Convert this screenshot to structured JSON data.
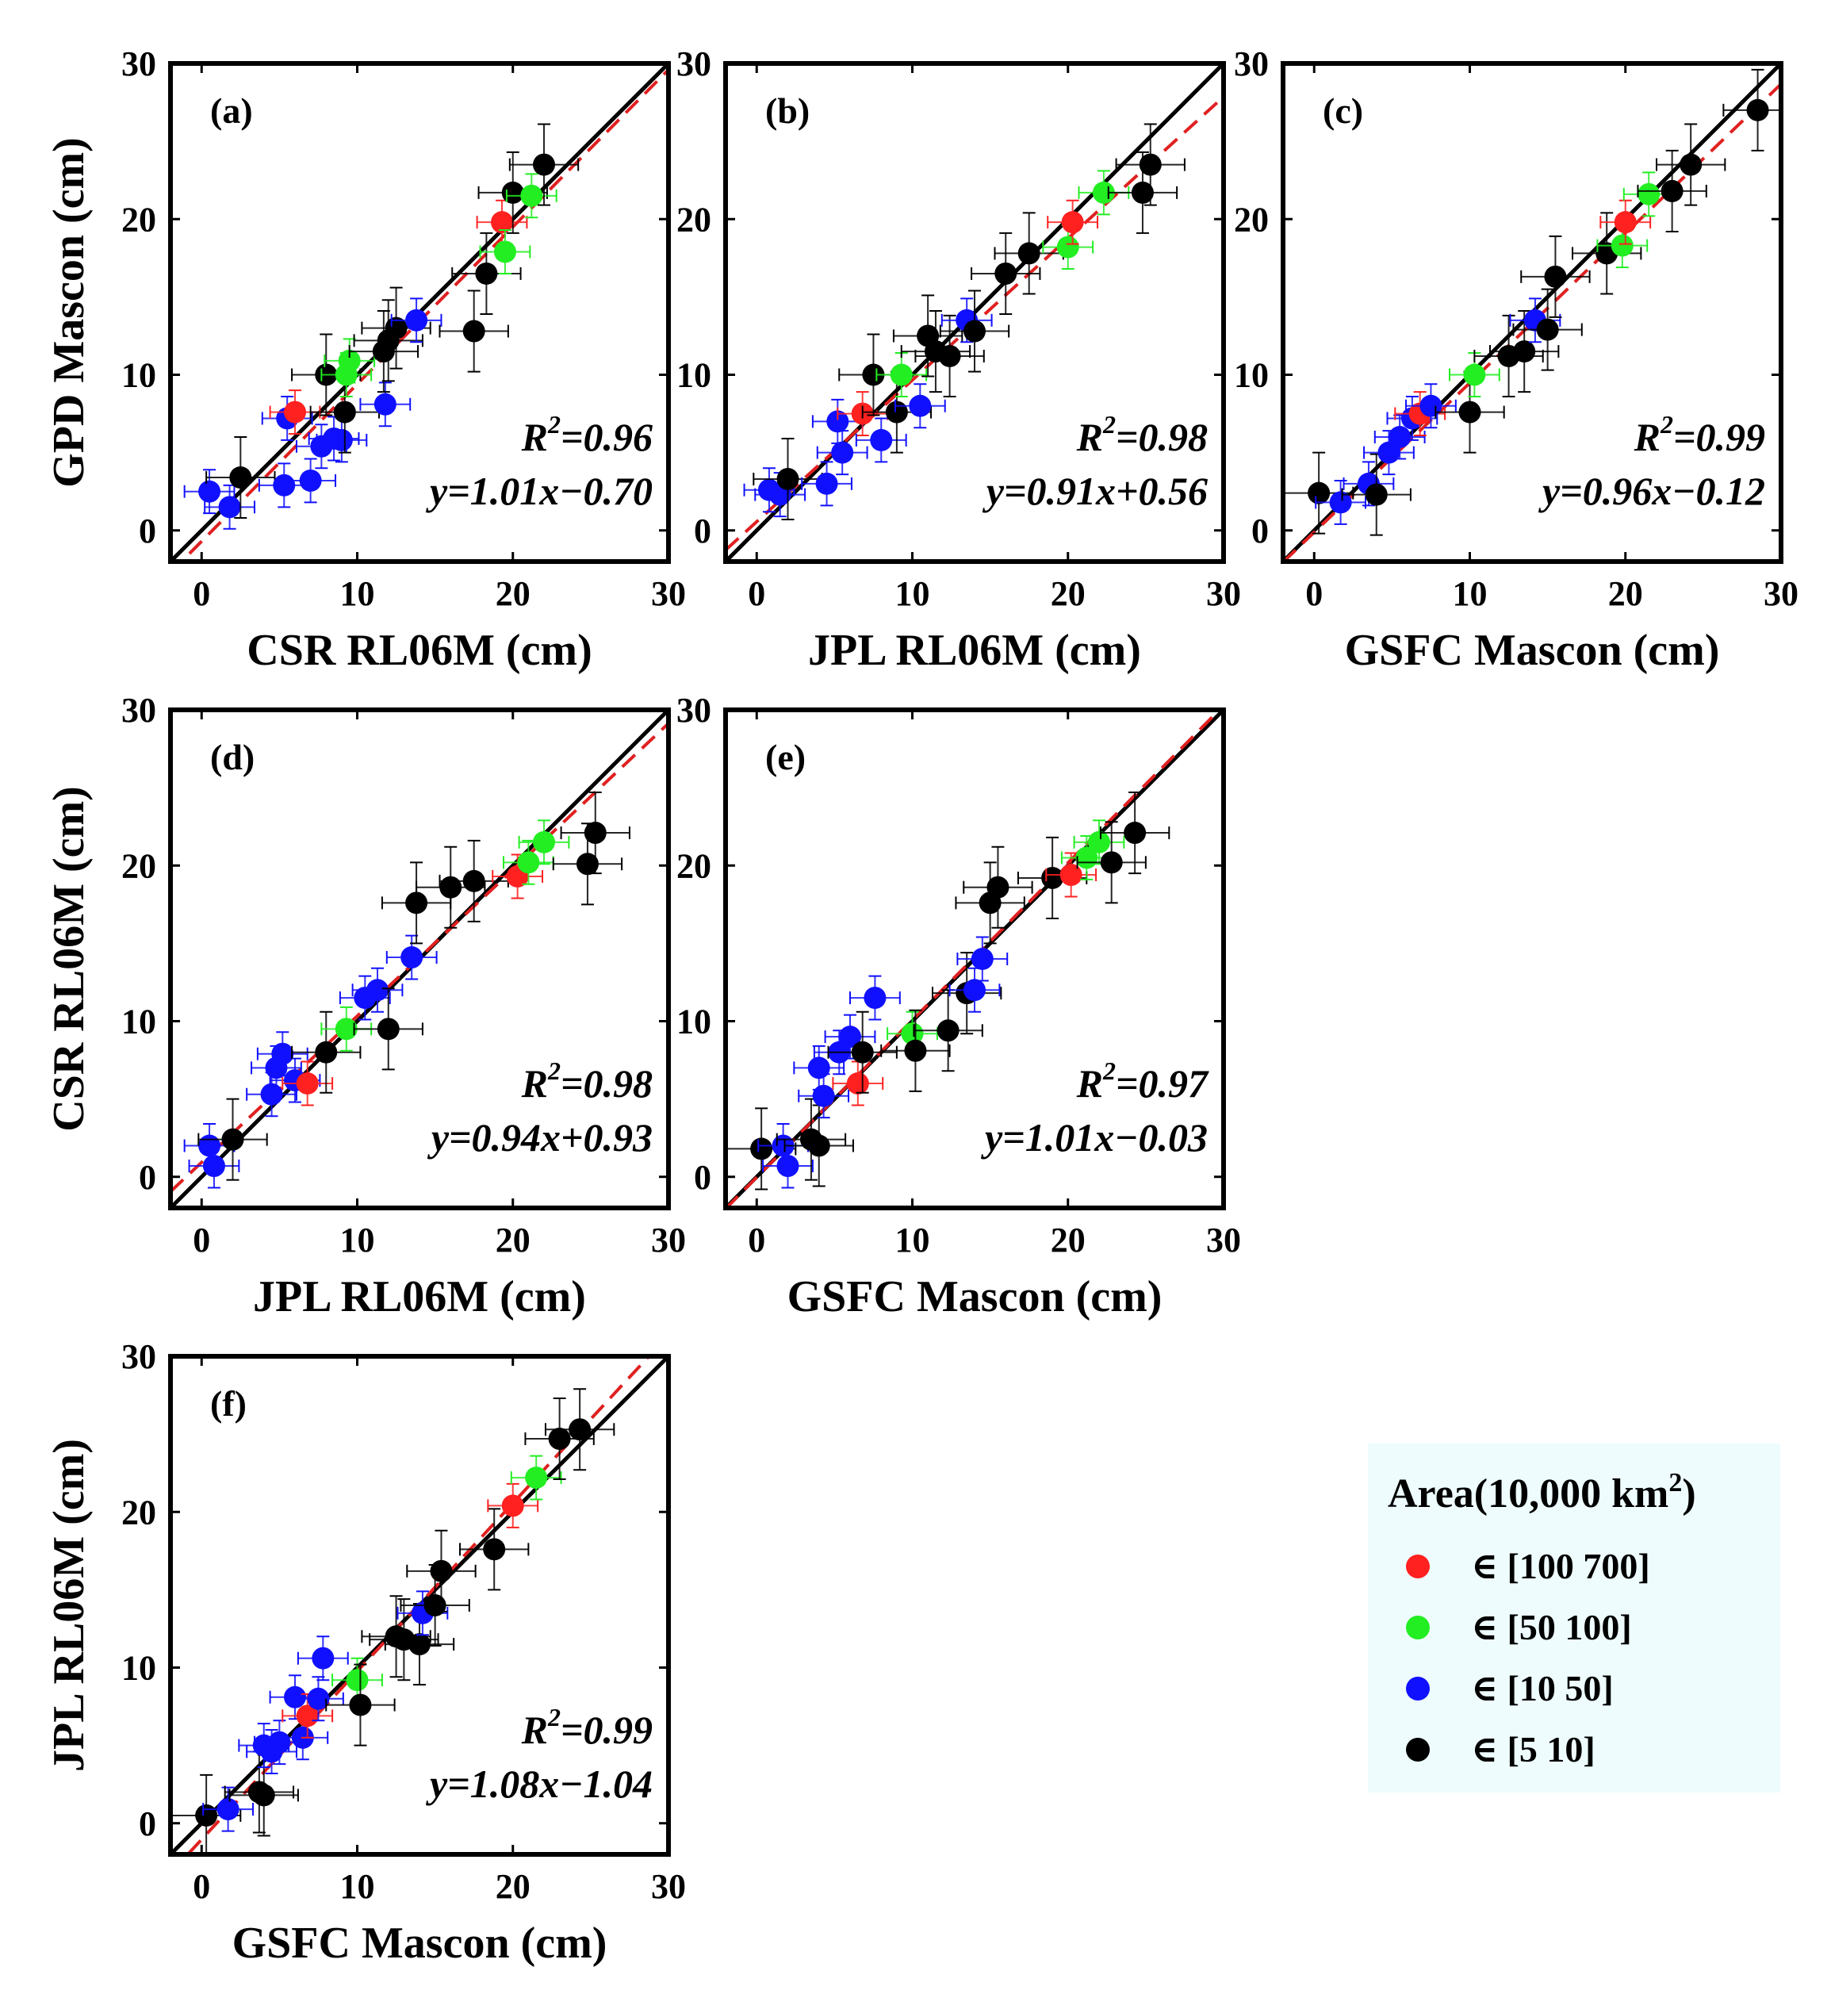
{
  "colors": {
    "red": "#ff2020",
    "green": "#22ee22",
    "blue": "#1010ff",
    "black": "#000000",
    "identity": "#000000",
    "fit": "#e02020",
    "legend_bg": "#eefcfd"
  },
  "legend": {
    "title_prefix": "Area(10,000 km",
    "title_sup": "2",
    "title_suffix": ")",
    "entries": [
      {
        "label": "∈ [100 700]",
        "color": "red"
      },
      {
        "label": "∈ [50 100]",
        "color": "green"
      },
      {
        "label": "∈ [10 50]",
        "color": "blue"
      },
      {
        "label": "∈ [5 10]",
        "color": "black"
      }
    ]
  },
  "chart_data": [
    {
      "type": "scatter",
      "panel": "(a)",
      "xlabel": "CSR RL06M (cm)",
      "ylabel": "GPD Mascon (cm)",
      "xlim": [
        -2,
        30
      ],
      "ylim": [
        -2,
        30
      ],
      "xticks": [
        "0",
        "10",
        "20",
        "30"
      ],
      "yticks": [
        "0",
        "10",
        "20",
        "30"
      ],
      "r2_label": "R",
      "r2_sup": "2",
      "r2_value": "=0.96",
      "fit_text": "y=1.01x−0.70",
      "fit": {
        "slope": 1.01,
        "intercept": -0.7
      },
      "points": [
        [
          0.5,
          2.5,
          "blue"
        ],
        [
          1.8,
          1.5,
          "blue"
        ],
        [
          2.5,
          3.4,
          "black"
        ],
        [
          5.3,
          2.9,
          "blue"
        ],
        [
          5.5,
          7.2,
          "blue"
        ],
        [
          6,
          7.6,
          "red"
        ],
        [
          7,
          3.2,
          "blue"
        ],
        [
          7.7,
          5.4,
          "blue"
        ],
        [
          8,
          10,
          "black"
        ],
        [
          8.5,
          5.9,
          "blue"
        ],
        [
          9,
          5.8,
          "blue"
        ],
        [
          9.2,
          7.6,
          "black"
        ],
        [
          9.5,
          10.9,
          "green"
        ],
        [
          9.3,
          10,
          "green"
        ],
        [
          11.8,
          8.1,
          "blue"
        ],
        [
          11.7,
          11.5,
          "black"
        ],
        [
          12,
          12.2,
          "black"
        ],
        [
          12.5,
          13,
          "black"
        ],
        [
          13.8,
          13.5,
          "blue"
        ],
        [
          17.5,
          12.8,
          "black"
        ],
        [
          18.3,
          16.5,
          "black"
        ],
        [
          19.3,
          19.8,
          "red"
        ],
        [
          19.5,
          17.9,
          "green"
        ],
        [
          20,
          21.7,
          "black"
        ],
        [
          21.2,
          21.5,
          "green"
        ],
        [
          22,
          23.5,
          "black"
        ]
      ]
    },
    {
      "type": "scatter",
      "panel": "(b)",
      "xlabel": "JPL RL06M (cm)",
      "ylabel": "",
      "xlim": [
        -2,
        30
      ],
      "ylim": [
        -2,
        30
      ],
      "xticks": [
        "0",
        "10",
        "20",
        "30"
      ],
      "yticks": [
        "0",
        "10",
        "20",
        "30"
      ],
      "r2_label": "R",
      "r2_sup": "2",
      "r2_value": "=0.98",
      "fit_text": "y=0.91x+0.56",
      "fit": {
        "slope": 0.91,
        "intercept": 0.56
      },
      "points": [
        [
          0.8,
          2.6,
          "blue"
        ],
        [
          1.5,
          2.3,
          "blue"
        ],
        [
          2,
          3.3,
          "black"
        ],
        [
          4.5,
          3,
          "blue"
        ],
        [
          5.2,
          7,
          "blue"
        ],
        [
          5.5,
          5,
          "blue"
        ],
        [
          6.8,
          7.5,
          "red"
        ],
        [
          7.5,
          10,
          "black"
        ],
        [
          8,
          5.8,
          "blue"
        ],
        [
          9,
          7.6,
          "black"
        ],
        [
          9.3,
          10,
          "green"
        ],
        [
          10.5,
          8,
          "blue"
        ],
        [
          11,
          12.5,
          "black"
        ],
        [
          11.5,
          11.5,
          "black"
        ],
        [
          12.4,
          11.2,
          "black"
        ],
        [
          13.5,
          13.5,
          "blue"
        ],
        [
          14,
          12.8,
          "black"
        ],
        [
          16,
          16.5,
          "black"
        ],
        [
          17.5,
          17.8,
          "black"
        ],
        [
          20,
          18.2,
          "green"
        ],
        [
          20.3,
          19.8,
          "red"
        ],
        [
          22.3,
          21.7,
          "green"
        ],
        [
          24.8,
          21.7,
          "black"
        ],
        [
          25.3,
          23.5,
          "black"
        ]
      ]
    },
    {
      "type": "scatter",
      "panel": "(c)",
      "xlabel": "GSFC Mascon (cm)",
      "ylabel": "",
      "xlim": [
        -2,
        30
      ],
      "ylim": [
        -2,
        30
      ],
      "xticks": [
        "0",
        "10",
        "20",
        "30"
      ],
      "yticks": [
        "0",
        "10",
        "20",
        "30"
      ],
      "r2_label": "R",
      "r2_sup": "2",
      "r2_value": "=0.99",
      "fit_text": "y=0.96x−0.12",
      "fit": {
        "slope": 0.96,
        "intercept": -0.12
      },
      "points": [
        [
          0.3,
          2.4,
          "black"
        ],
        [
          1.7,
          1.8,
          "blue"
        ],
        [
          3.5,
          3,
          "blue"
        ],
        [
          4,
          2.3,
          "black"
        ],
        [
          4.8,
          5,
          "blue"
        ],
        [
          5.5,
          6,
          "blue"
        ],
        [
          6.3,
          7.2,
          "blue"
        ],
        [
          6.8,
          7.5,
          "red"
        ],
        [
          7.5,
          8,
          "blue"
        ],
        [
          10,
          7.6,
          "black"
        ],
        [
          10.3,
          10,
          "green"
        ],
        [
          12.5,
          11.2,
          "black"
        ],
        [
          13.5,
          11.5,
          "black"
        ],
        [
          14.2,
          13.5,
          "blue"
        ],
        [
          15,
          12.9,
          "black"
        ],
        [
          15.5,
          16.3,
          "black"
        ],
        [
          18.8,
          17.8,
          "black"
        ],
        [
          19.8,
          18.3,
          "green"
        ],
        [
          20,
          19.8,
          "red"
        ],
        [
          21.5,
          21.6,
          "green"
        ],
        [
          23,
          21.8,
          "black"
        ],
        [
          24.2,
          23.5,
          "black"
        ],
        [
          28.5,
          27,
          "black"
        ]
      ]
    },
    {
      "type": "scatter",
      "panel": "(d)",
      "xlabel": "JPL RL06M (cm)",
      "ylabel": "CSR RL06M (cm)",
      "xlim": [
        -2,
        30
      ],
      "ylim": [
        -2,
        30
      ],
      "xticks": [
        "0",
        "10",
        "20",
        "30"
      ],
      "yticks": [
        "0",
        "10",
        "20",
        "30"
      ],
      "r2_label": "R",
      "r2_sup": "2",
      "r2_value": "=0.98",
      "fit_text": "y=0.94x+0.93",
      "fit": {
        "slope": 0.94,
        "intercept": 0.93
      },
      "points": [
        [
          0.5,
          2,
          "blue"
        ],
        [
          0.8,
          0.7,
          "blue"
        ],
        [
          2,
          2.4,
          "black"
        ],
        [
          4.5,
          5.3,
          "blue"
        ],
        [
          4.8,
          7,
          "blue"
        ],
        [
          5.2,
          7.9,
          "blue"
        ],
        [
          6,
          6.2,
          "blue"
        ],
        [
          6.8,
          6,
          "red"
        ],
        [
          8,
          8,
          "black"
        ],
        [
          9.3,
          9.5,
          "green"
        ],
        [
          10.5,
          11.5,
          "blue"
        ],
        [
          11.3,
          12,
          "blue"
        ],
        [
          12,
          9.5,
          "black"
        ],
        [
          13.5,
          14.1,
          "blue"
        ],
        [
          13.8,
          17.6,
          "black"
        ],
        [
          16,
          18.6,
          "black"
        ],
        [
          17.5,
          19,
          "black"
        ],
        [
          20.3,
          19.3,
          "red"
        ],
        [
          21,
          20.2,
          "green"
        ],
        [
          22,
          21.5,
          "green"
        ],
        [
          24.8,
          20.1,
          "black"
        ],
        [
          25.3,
          22.1,
          "black"
        ]
      ]
    },
    {
      "type": "scatter",
      "panel": "(e)",
      "xlabel": "GSFC Mascon (cm)",
      "ylabel": "",
      "xlim": [
        -2,
        30
      ],
      "ylim": [
        -2,
        30
      ],
      "xticks": [
        "0",
        "10",
        "20",
        "30"
      ],
      "yticks": [
        "0",
        "10",
        "20",
        "30"
      ],
      "r2_label": "R",
      "r2_sup": "2",
      "r2_value": "=0.97",
      "fit_text": "y=1.01x−0.03",
      "fit": {
        "slope": 1.01,
        "intercept": -0.03
      },
      "points": [
        [
          0.3,
          1.8,
          "black"
        ],
        [
          1.7,
          2,
          "blue"
        ],
        [
          2,
          0.7,
          "blue"
        ],
        [
          3.5,
          2.4,
          "black"
        ],
        [
          4,
          2,
          "black"
        ],
        [
          4,
          7,
          "blue"
        ],
        [
          4.3,
          5.2,
          "blue"
        ],
        [
          5.3,
          8,
          "blue"
        ],
        [
          6,
          9,
          "blue"
        ],
        [
          6.5,
          6,
          "red"
        ],
        [
          6.8,
          8,
          "black"
        ],
        [
          7.6,
          11.5,
          "blue"
        ],
        [
          10,
          9.2,
          "green"
        ],
        [
          10.2,
          8.1,
          "black"
        ],
        [
          12.3,
          9.4,
          "black"
        ],
        [
          13.5,
          11.8,
          "black"
        ],
        [
          14,
          12,
          "blue"
        ],
        [
          14.5,
          14,
          "blue"
        ],
        [
          15,
          17.6,
          "black"
        ],
        [
          15.5,
          18.6,
          "black"
        ],
        [
          19,
          19.2,
          "black"
        ],
        [
          20.2,
          19.4,
          "red"
        ],
        [
          21.2,
          20.5,
          "green"
        ],
        [
          22,
          21.5,
          "green"
        ],
        [
          22.8,
          20.2,
          "black"
        ],
        [
          24.3,
          22.1,
          "black"
        ]
      ]
    },
    {
      "type": "scatter",
      "panel": "(f)",
      "xlabel": "GSFC Mascon (cm)",
      "ylabel": "JPL RL06M (cm)",
      "xlim": [
        -2,
        30
      ],
      "ylim": [
        -2,
        30
      ],
      "xticks": [
        "0",
        "10",
        "20",
        "30"
      ],
      "yticks": [
        "0",
        "10",
        "20",
        "30"
      ],
      "r2_label": "R",
      "r2_sup": "2",
      "r2_value": "=0.99",
      "fit_text": "y=1.08x−1.04",
      "fit": {
        "slope": 1.08,
        "intercept": -1.04
      },
      "points": [
        [
          0.3,
          0.5,
          "black"
        ],
        [
          1.7,
          0.9,
          "blue"
        ],
        [
          3.7,
          2,
          "black"
        ],
        [
          4,
          1.8,
          "black"
        ],
        [
          4,
          5,
          "blue"
        ],
        [
          4.5,
          4.6,
          "blue"
        ],
        [
          5,
          5.2,
          "blue"
        ],
        [
          6,
          8.1,
          "blue"
        ],
        [
          6.5,
          5.5,
          "blue"
        ],
        [
          6.8,
          6.9,
          "red"
        ],
        [
          7.5,
          8,
          "blue"
        ],
        [
          7.8,
          10.6,
          "blue"
        ],
        [
          10,
          9.2,
          "green"
        ],
        [
          10.2,
          7.6,
          "black"
        ],
        [
          12.5,
          12,
          "black"
        ],
        [
          13,
          11.8,
          "black"
        ],
        [
          14,
          11.5,
          "black"
        ],
        [
          14.2,
          13.5,
          "blue"
        ],
        [
          15,
          14,
          "black"
        ],
        [
          15.4,
          16.2,
          "black"
        ],
        [
          18.8,
          17.6,
          "black"
        ],
        [
          20,
          20.4,
          "red"
        ],
        [
          21.5,
          22.2,
          "green"
        ],
        [
          23,
          24.7,
          "black"
        ],
        [
          24.3,
          25.3,
          "black"
        ]
      ]
    }
  ]
}
